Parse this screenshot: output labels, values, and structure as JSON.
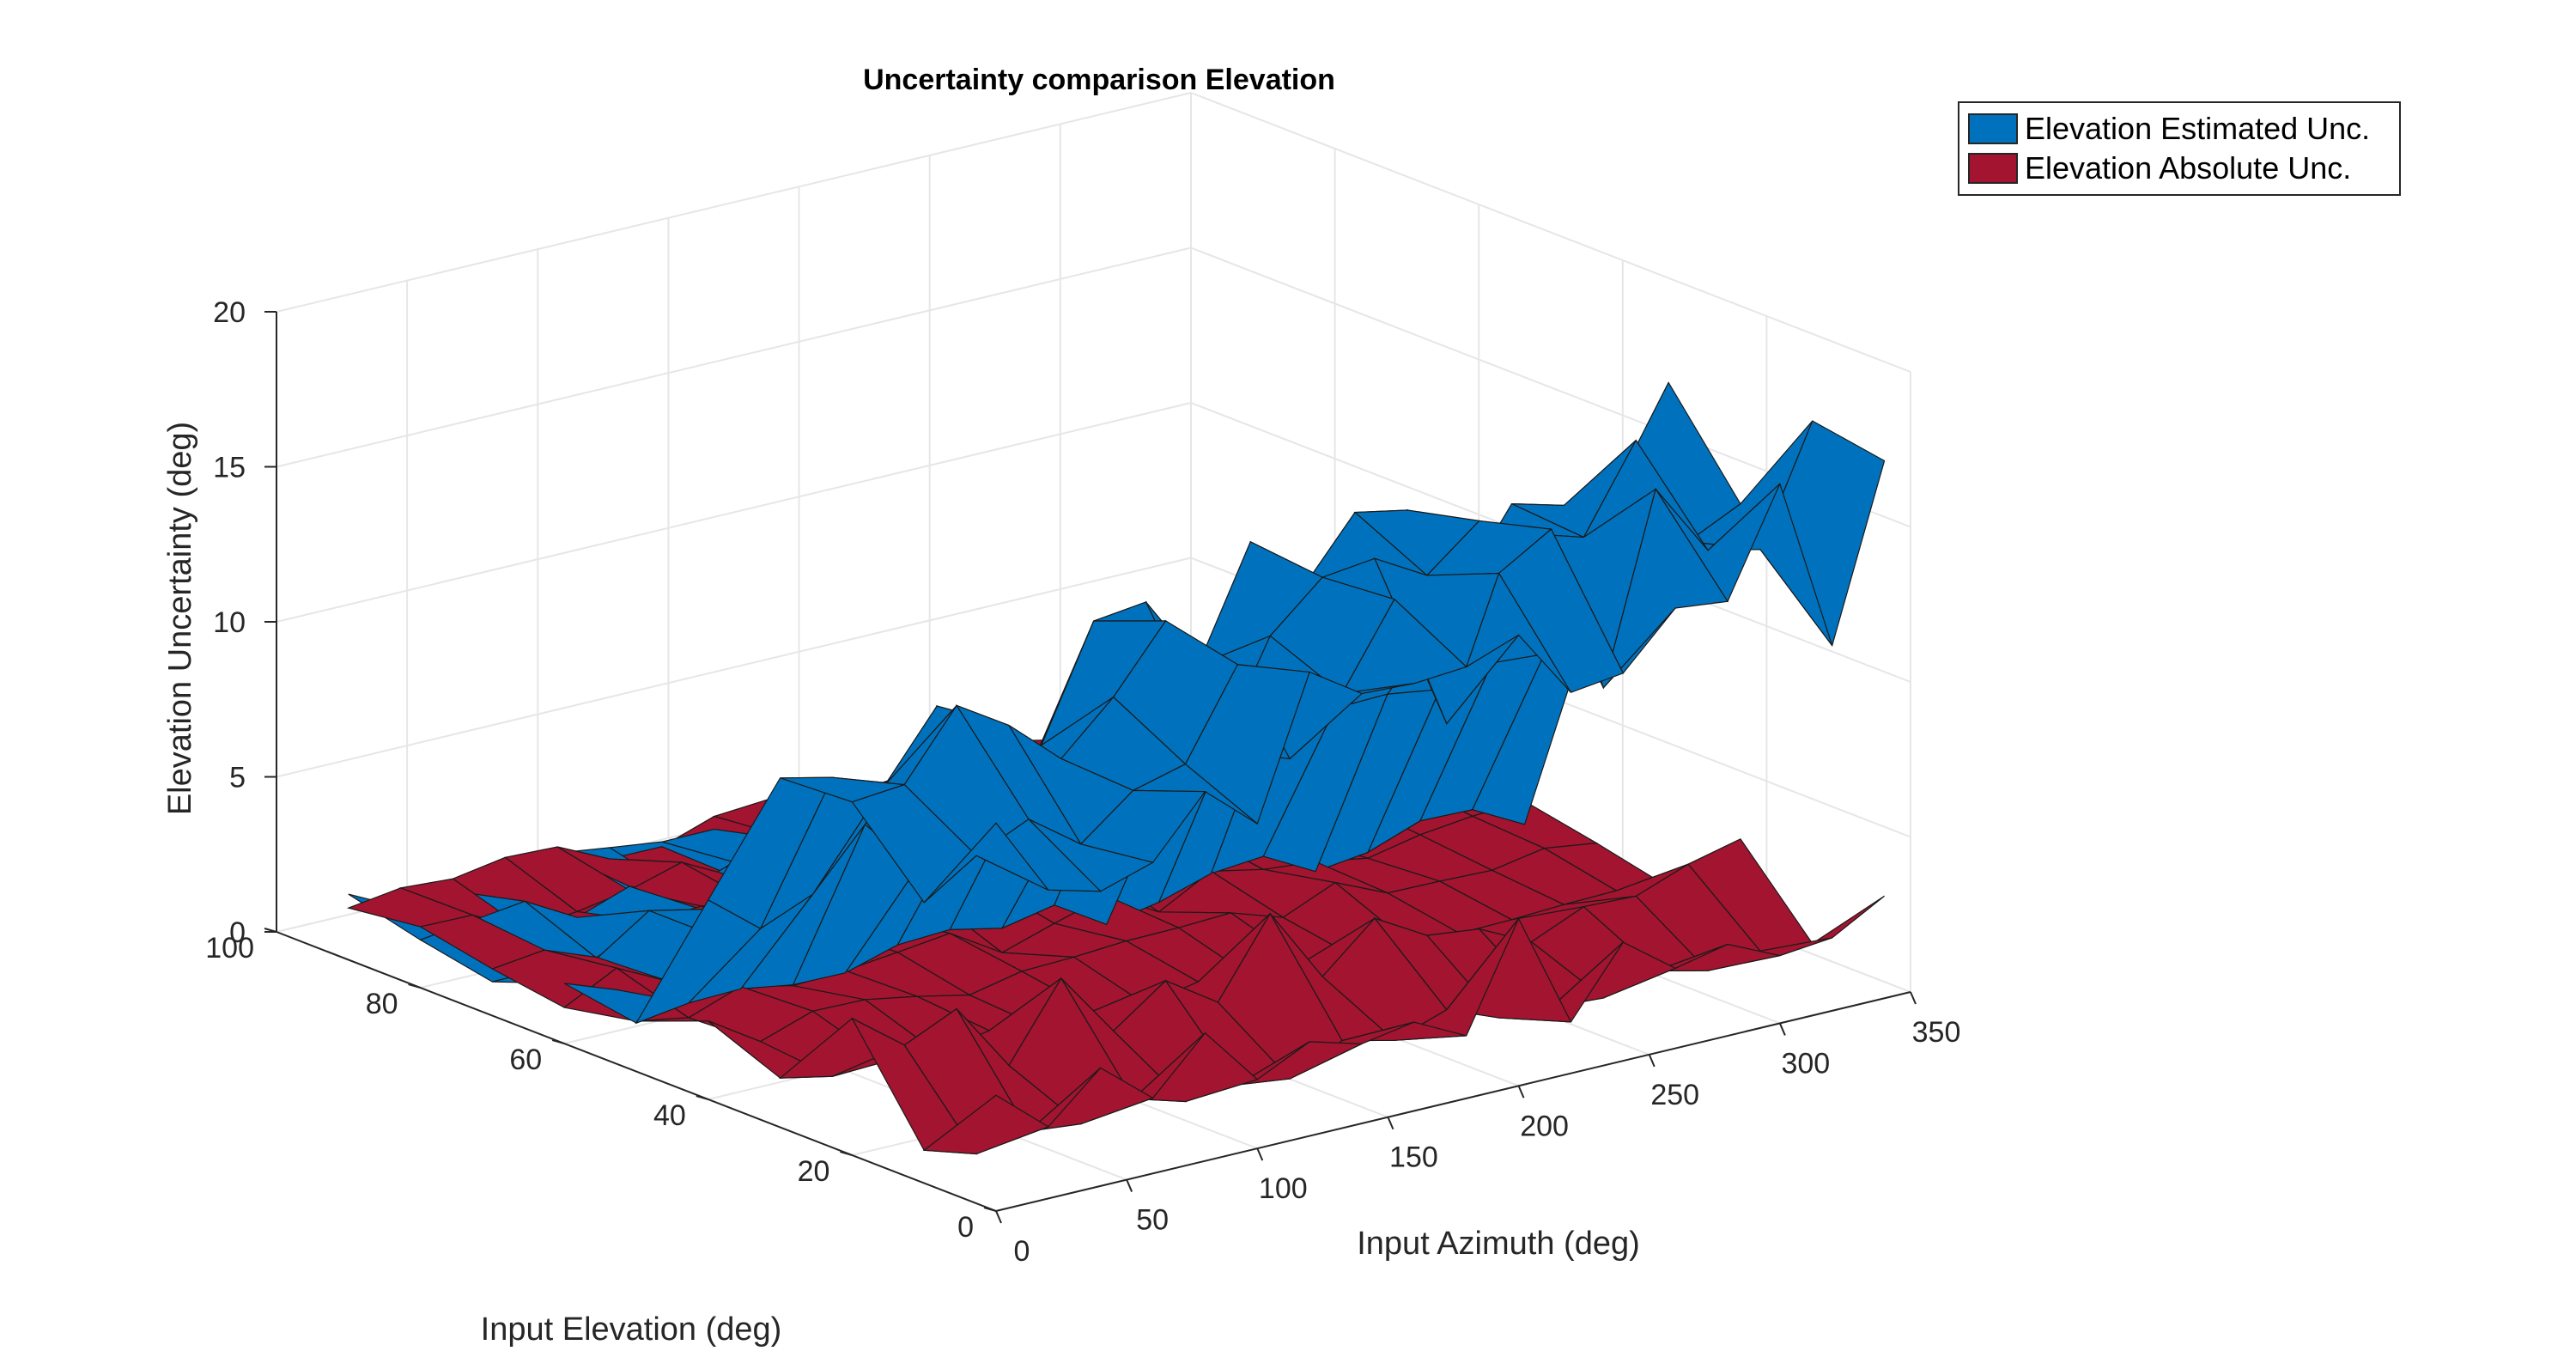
{
  "chart_data": {
    "type": "surface3d",
    "title": "Uncertainty comparison Elevation",
    "xlabel": "Input Azimuth (deg)",
    "ylabel": "Input Elevation (deg)",
    "zlabel": "Elevation  Uncertainty (deg)",
    "xlim": [
      0,
      350
    ],
    "ylim": [
      0,
      100
    ],
    "zlim": [
      0,
      20
    ],
    "x_ticks": [
      "0",
      "50",
      "100",
      "150",
      "200",
      "250",
      "300",
      "350"
    ],
    "y_ticks": [
      "0",
      "20",
      "40",
      "60",
      "80",
      "100"
    ],
    "z_ticks": [
      "0",
      "5",
      "10",
      "15",
      "20"
    ],
    "grid": true,
    "legend_position": "top-right",
    "series": [
      {
        "name": "Elevation Estimated Unc.",
        "color": "#0072BD",
        "profile_description_free": true,
        "azimuth": [
          0,
          20,
          40,
          60,
          80,
          100,
          120,
          140,
          160,
          180,
          200,
          220,
          240,
          260,
          280,
          300,
          320,
          340
        ],
        "elevation": [
          0,
          10,
          20,
          30,
          40,
          50,
          60,
          70,
          80,
          90
        ],
        "base_level_low_elevation": 1.0,
        "plateau_low_elevation_by_azimuth": [
          13.5,
          13.6,
          13.8,
          14.0,
          14.3,
          14.6,
          15.0,
          15.3,
          15.5,
          15.8,
          16.1,
          16.4,
          16.7,
          17.0,
          17.3,
          17.6,
          17.8,
          18.0
        ],
        "transition_elevation": 40
      },
      {
        "name": "Elevation Absolute Unc.",
        "color": "#A2142F",
        "azimuth": [
          0,
          20,
          40,
          60,
          80,
          100,
          120,
          140,
          160,
          180,
          200,
          220,
          240,
          260,
          280,
          300,
          320,
          340
        ],
        "elevation": [
          0,
          10,
          20,
          30,
          40,
          50,
          60,
          70,
          80,
          90
        ],
        "peak_level_low_elevation_by_azimuth": [
          5.0,
          3.2,
          4.6,
          2.8,
          4.9,
          3.0,
          4.4,
          2.6,
          4.7,
          3.3,
          5.6,
          3.0,
          4.3,
          2.9,
          4.2,
          3.1,
          4.0,
          3.4
        ],
        "base_level_high_elevation": 1.0
      }
    ]
  },
  "legend": {
    "items": [
      {
        "label": "Elevation Estimated Unc.",
        "color": "#0072BD"
      },
      {
        "label": "Elevation Absolute Unc.",
        "color": "#A2142F"
      }
    ]
  }
}
